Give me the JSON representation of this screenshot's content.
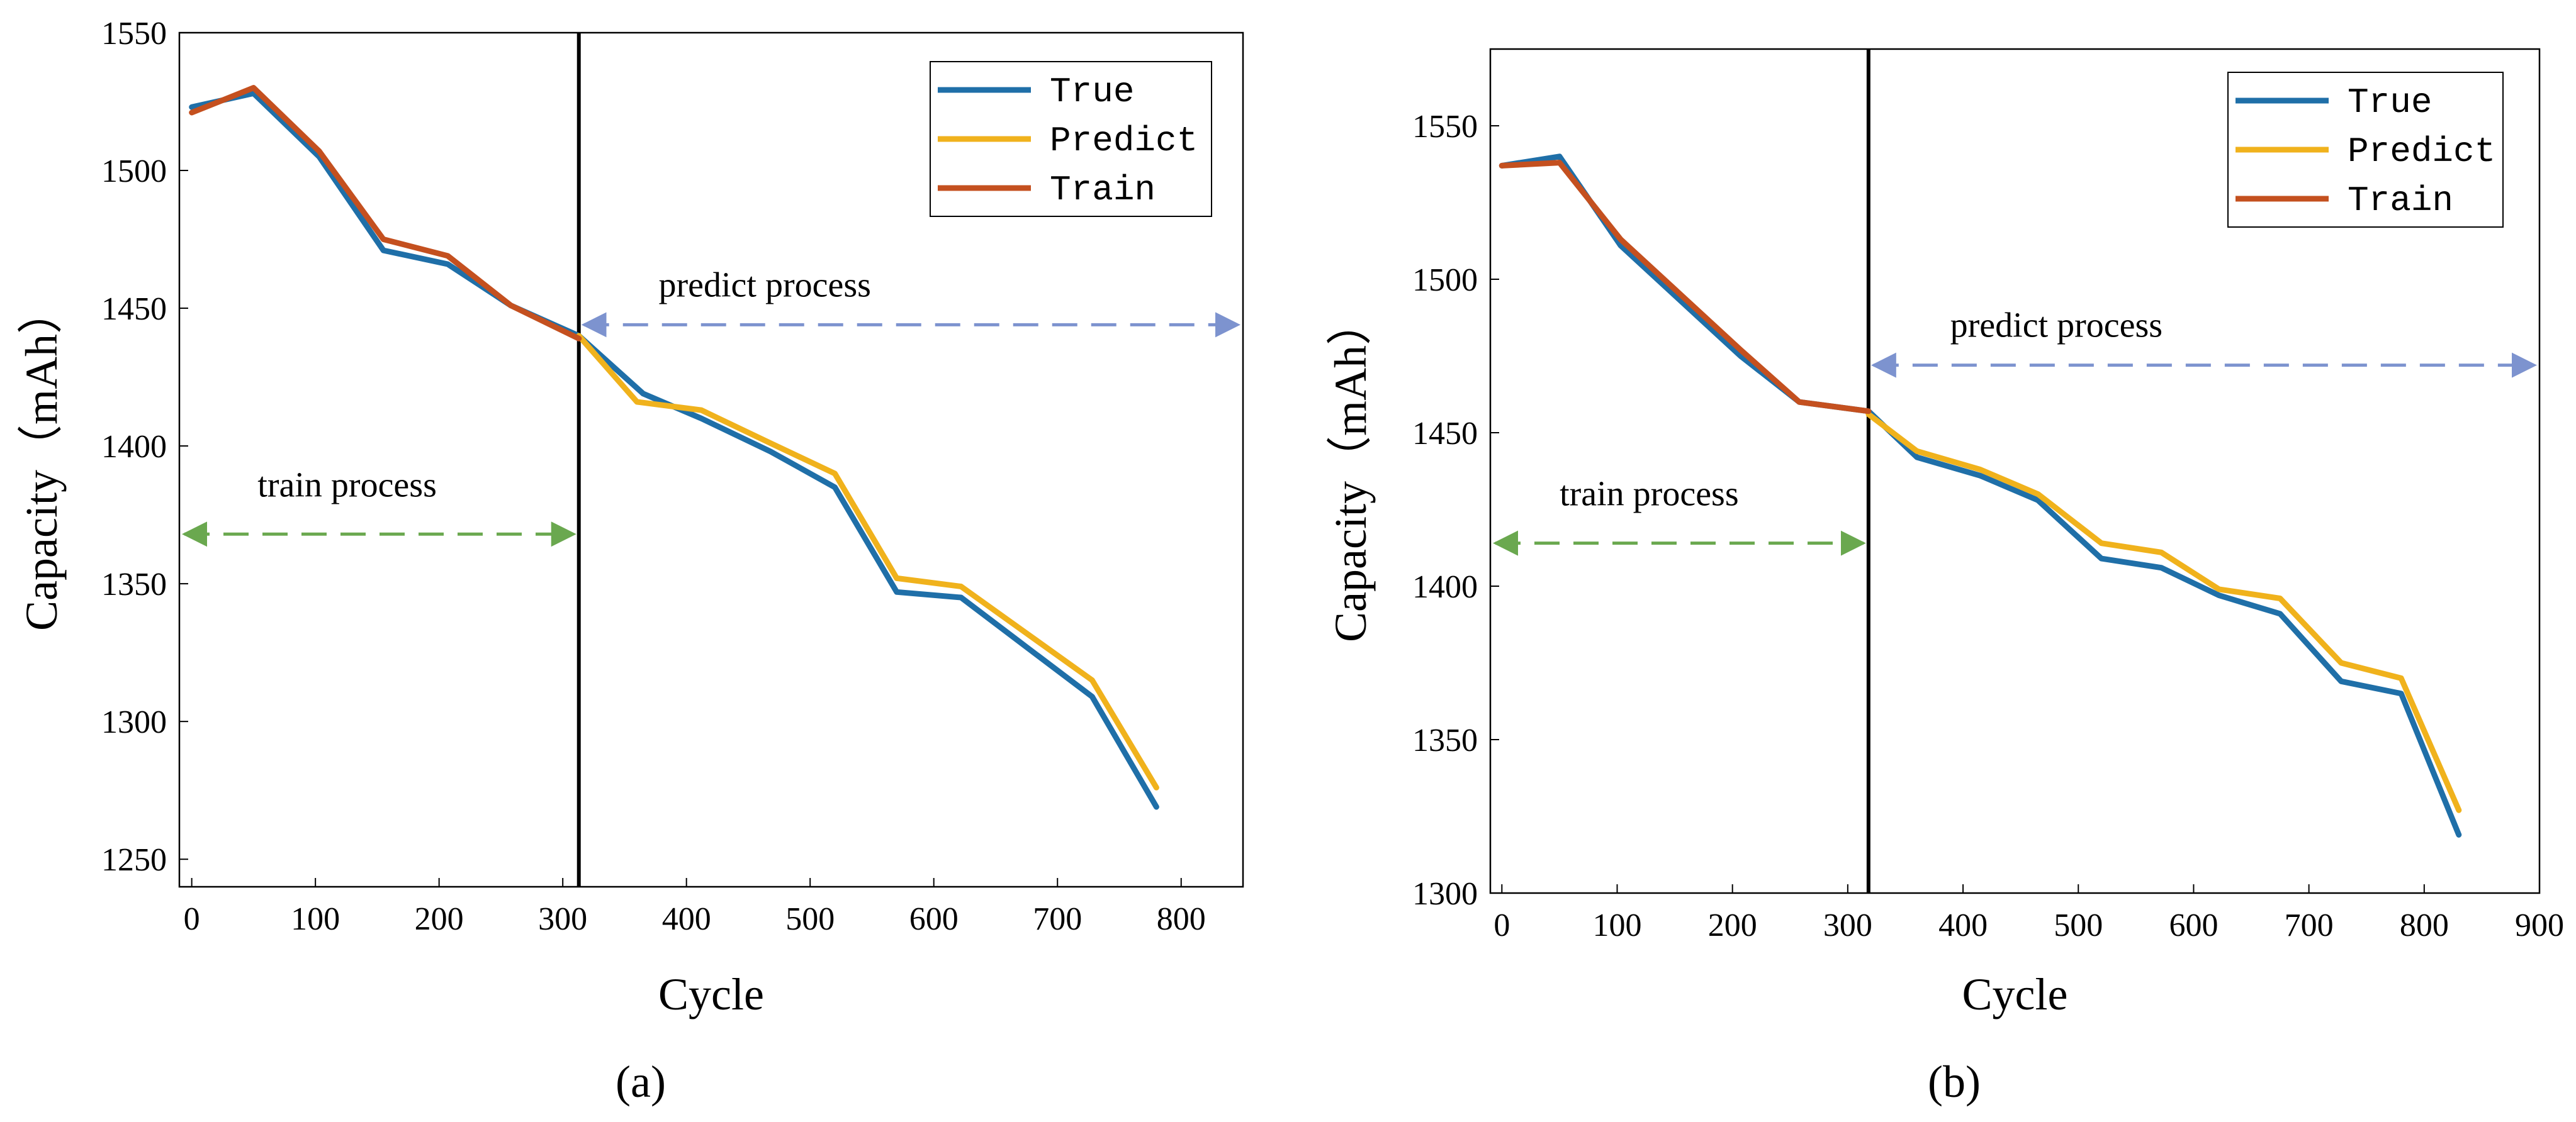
{
  "figure": {
    "panels": [
      "(a)",
      "(b)"
    ],
    "annotations": {
      "train": "train process",
      "predict": "predict process"
    }
  },
  "colors": {
    "true": "#1f6fa8",
    "predict": "#f0b21c",
    "train": "#c4501f",
    "divider": "#000000",
    "train_arrow": "#6aa84f",
    "predict_arrow": "#7d93cf"
  },
  "chart_data": [
    {
      "type": "line",
      "panel": "(a)",
      "xlabel": "Cycle",
      "ylabel": "Capacity（mAh）",
      "xlim": [
        -10,
        850
      ],
      "ylim": [
        1240,
        1550
      ],
      "xticks": [
        0,
        100,
        200,
        300,
        400,
        500,
        600,
        700,
        800
      ],
      "yticks": [
        1250,
        1300,
        1350,
        1400,
        1450,
        1500,
        1550
      ],
      "split_x": 313,
      "train_arrow_y": 1368,
      "predict_arrow_y": 1444,
      "legend": [
        "True",
        "Predict",
        "Train"
      ],
      "legend_loc": "upper right",
      "series": [
        {
          "name": "True",
          "x": [
            0,
            50,
            103,
            155,
            207,
            258,
            313,
            365,
            412,
            468,
            520,
            570,
            622,
            675,
            728,
            780
          ],
          "y": [
            1523,
            1528,
            1505,
            1471,
            1466,
            1451,
            1440,
            1419,
            1410,
            1398,
            1385,
            1347,
            1345,
            1327,
            1309,
            1269
          ]
        },
        {
          "name": "Predict",
          "x": [
            313,
            360,
            412,
            468,
            520,
            570,
            622,
            675,
            728,
            780
          ],
          "y": [
            1440,
            1416,
            1413,
            1401,
            1390,
            1352,
            1349,
            1332,
            1315,
            1276
          ]
        },
        {
          "name": "Train",
          "x": [
            0,
            50,
            103,
            155,
            207,
            258,
            313
          ],
          "y": [
            1521,
            1530,
            1507,
            1475,
            1469,
            1451,
            1439
          ]
        }
      ]
    },
    {
      "type": "line",
      "panel": "(b)",
      "xlabel": "Cycle",
      "ylabel": "Capacity（mAh）",
      "xlim": [
        -10,
        900
      ],
      "ylim": [
        1300,
        1575
      ],
      "xticks": [
        0,
        100,
        200,
        300,
        400,
        500,
        600,
        700,
        800,
        900
      ],
      "yticks": [
        1300,
        1350,
        1400,
        1450,
        1500,
        1550
      ],
      "split_x": 318,
      "train_arrow_y": 1414,
      "predict_arrow_y": 1472,
      "legend": [
        "True",
        "Predict",
        "Train"
      ],
      "legend_loc": "upper right",
      "series": [
        {
          "name": "True",
          "x": [
            0,
            50,
            103,
            155,
            207,
            258,
            318,
            360,
            415,
            465,
            520,
            572,
            622,
            675,
            728,
            780,
            830
          ],
          "y": [
            1537,
            1540,
            1511,
            1493,
            1475,
            1460,
            1457,
            1442,
            1436,
            1428,
            1409,
            1406,
            1397,
            1391,
            1369,
            1365,
            1319
          ]
        },
        {
          "name": "Predict",
          "x": [
            318,
            360,
            415,
            465,
            520,
            572,
            622,
            675,
            728,
            780,
            830
          ],
          "y": [
            1456,
            1444,
            1438,
            1430,
            1414,
            1411,
            1399,
            1396,
            1375,
            1370,
            1327
          ]
        },
        {
          "name": "Train",
          "x": [
            0,
            50,
            103,
            155,
            207,
            258,
            318
          ],
          "y": [
            1537,
            1538,
            1513,
            1495,
            1477,
            1460,
            1457
          ]
        }
      ]
    }
  ]
}
